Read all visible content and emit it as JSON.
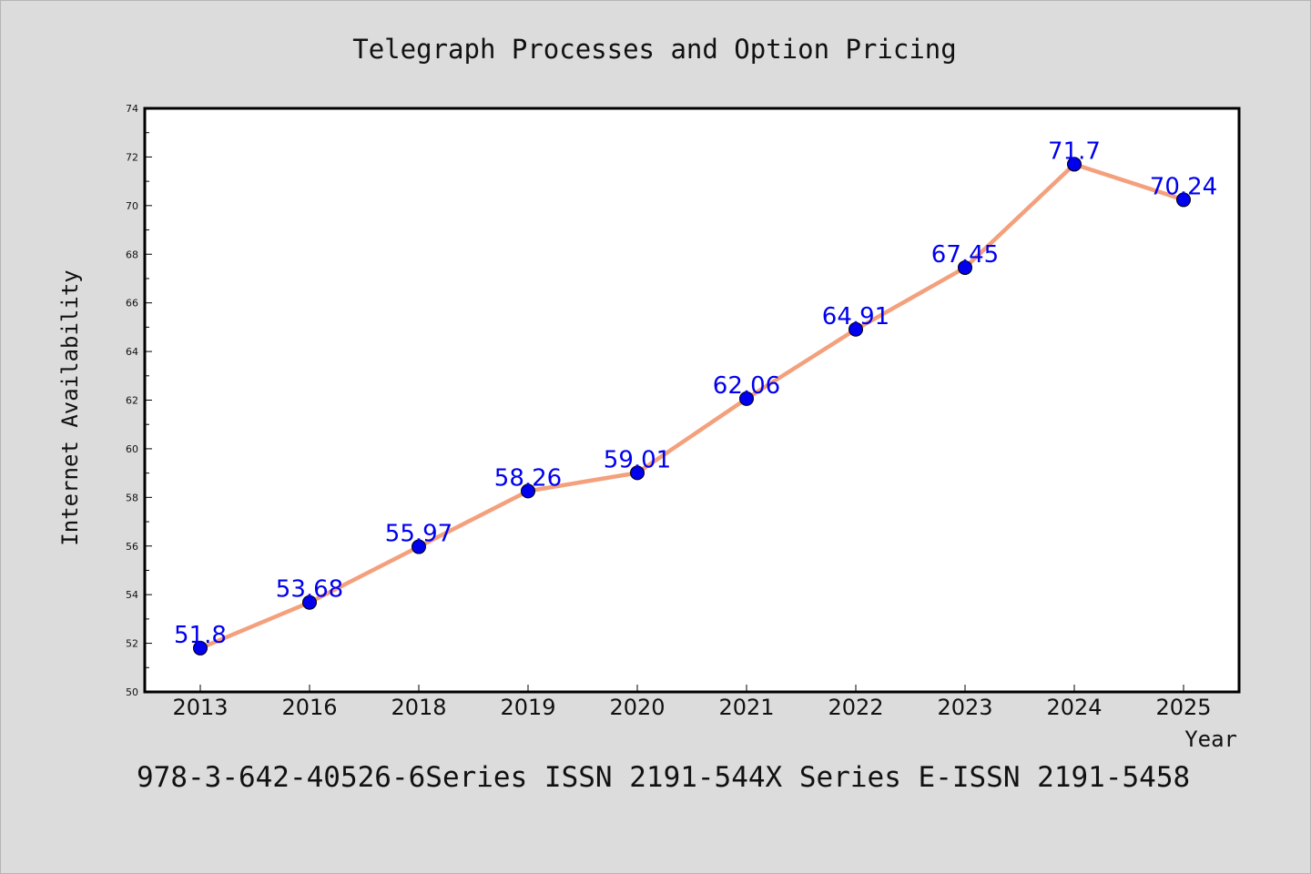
{
  "chart_data": {
    "type": "line",
    "title": "Telegraph Processes and Option Pricing",
    "xlabel": "Year",
    "ylabel": "Internet Availability",
    "categories": [
      "2013",
      "2016",
      "2018",
      "2019",
      "2020",
      "2021",
      "2022",
      "2023",
      "2024",
      "2025"
    ],
    "series": [
      {
        "values": [
          51.8,
          53.68,
          55.97,
          58.26,
          59.01,
          62.06,
          64.91,
          67.45,
          71.7,
          70.24
        ],
        "labels": [
          "51.8",
          "53.68",
          "55.97",
          "58.26",
          "59.01",
          "62.06",
          "64.91",
          "67.45",
          "71.7",
          "70.24"
        ],
        "line_color": "#f4a07c",
        "marker_color": "#0000ee"
      }
    ],
    "ylim": [
      50,
      74
    ],
    "yticks": [
      "50",
      "52",
      "54",
      "56",
      "58",
      "60",
      "62",
      "64",
      "66",
      "68",
      "70",
      "72",
      "74"
    ],
    "grid": false,
    "legend": "none"
  },
  "footer": "978-3-642-40526-6Series ISSN 2191-544X Series E-ISSN 2191-5458",
  "colors": {
    "background": "#dcdcdc",
    "plot_background": "#ffffff",
    "axis": "#000000"
  }
}
